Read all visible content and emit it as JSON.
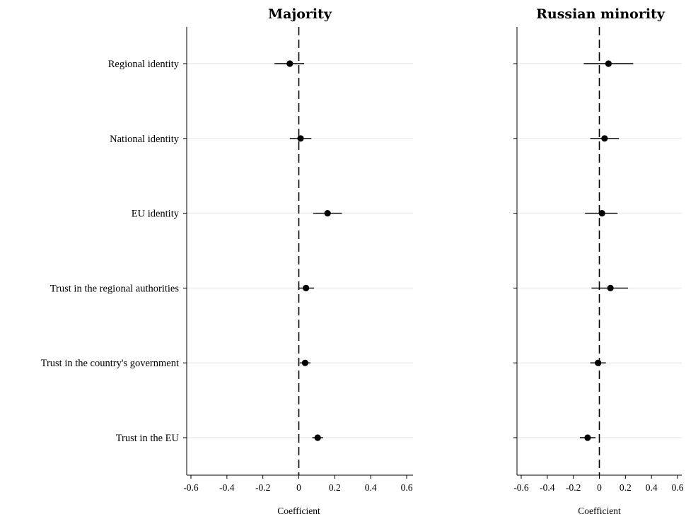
{
  "chart_data": {
    "type": "coefficient-plot",
    "categories": [
      "Regional identity",
      "National identity",
      "EU identity",
      "Trust in the regional authorities",
      "Trust in the country's government",
      "Trust in the EU"
    ],
    "xlabel": "Coefficient",
    "xlim": [
      -0.65,
      0.65
    ],
    "xticks": [
      "-0.6",
      "-0.4",
      "-0.2",
      "0",
      "0.2",
      "0.4",
      "0.6"
    ],
    "reference_line": 0,
    "grid": "horizontal",
    "panels": [
      {
        "title": "Majority",
        "estimates": [
          -0.05,
          0.01,
          0.16,
          0.04,
          0.035,
          0.105
        ],
        "ci_low": [
          -0.135,
          -0.05,
          0.08,
          0.0,
          0.005,
          0.075
        ],
        "ci_high": [
          0.03,
          0.07,
          0.24,
          0.085,
          0.065,
          0.135
        ]
      },
      {
        "title": "Russian minority",
        "estimates": [
          0.07,
          0.04,
          0.02,
          0.085,
          -0.01,
          -0.09
        ],
        "ci_low": [
          -0.12,
          -0.07,
          -0.11,
          -0.06,
          -0.07,
          -0.15
        ],
        "ci_high": [
          0.26,
          0.15,
          0.14,
          0.22,
          0.05,
          -0.03
        ]
      }
    ]
  }
}
